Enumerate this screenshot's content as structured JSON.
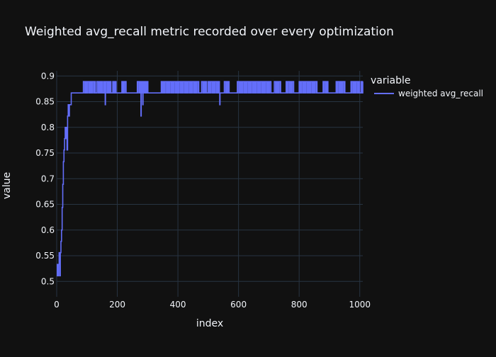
{
  "chart_data": {
    "type": "line",
    "title": "Weighted avg_recall metric recorded over every optimization",
    "xlabel": "index",
    "ylabel": "value",
    "xlim": [
      0,
      1010
    ],
    "ylim": [
      0.47,
      0.91
    ],
    "xticks": [
      0,
      200,
      400,
      600,
      800,
      1000
    ],
    "yticks": [
      0.5,
      0.55,
      0.6,
      0.65,
      0.7,
      0.75,
      0.8,
      0.85,
      0.9
    ],
    "grid": true,
    "legend": {
      "title": "variable",
      "placement": "top-right"
    },
    "colors": {
      "background": "#111111",
      "grid": "#283442",
      "text": "#f2f5fa",
      "series": "#636efa"
    },
    "series": [
      {
        "name": "weighted avg_recall",
        "levels": [
          0.867,
          0.889
        ],
        "ramp": [
          [
            0,
            0.511
          ],
          [
            2,
            0.533
          ],
          [
            4,
            0.511
          ],
          [
            6,
            0.533
          ],
          [
            8,
            0.556
          ],
          [
            10,
            0.511
          ],
          [
            12,
            0.556
          ],
          [
            14,
            0.578
          ],
          [
            16,
            0.6
          ],
          [
            18,
            0.644
          ],
          [
            20,
            0.689
          ],
          [
            22,
            0.733
          ],
          [
            24,
            0.756
          ],
          [
            26,
            0.778
          ],
          [
            28,
            0.8
          ],
          [
            30,
            0.778
          ],
          [
            32,
            0.8
          ],
          [
            34,
            0.756
          ],
          [
            36,
            0.822
          ],
          [
            38,
            0.844
          ],
          [
            40,
            0.822
          ],
          [
            42,
            0.844
          ],
          [
            44,
            0.844
          ],
          [
            46,
            0.844
          ],
          [
            48,
            0.867
          ],
          [
            55,
            0.867
          ],
          [
            85,
            0.867
          ]
        ],
        "dips": [
          [
            160,
            0.844
          ],
          [
            162,
            0.867
          ],
          [
            278,
            0.822
          ],
          [
            280,
            0.867
          ],
          [
            284,
            0.844
          ],
          [
            286,
            0.867
          ],
          [
            538,
            0.844
          ],
          [
            541,
            0.867
          ]
        ],
        "high_segments": [
          [
            88,
            128
          ],
          [
            132,
            150
          ],
          [
            155,
            178
          ],
          [
            185,
            195
          ],
          [
            215,
            228
          ],
          [
            265,
            300
          ],
          [
            345,
            468
          ],
          [
            478,
            494
          ],
          [
            500,
            536
          ],
          [
            552,
            568
          ],
          [
            595,
            706
          ],
          [
            718,
            738
          ],
          [
            757,
            782
          ],
          [
            800,
            858
          ],
          [
            878,
            895
          ],
          [
            922,
            950
          ],
          [
            970,
            1000
          ],
          [
            1005,
            1010
          ]
        ]
      }
    ]
  }
}
